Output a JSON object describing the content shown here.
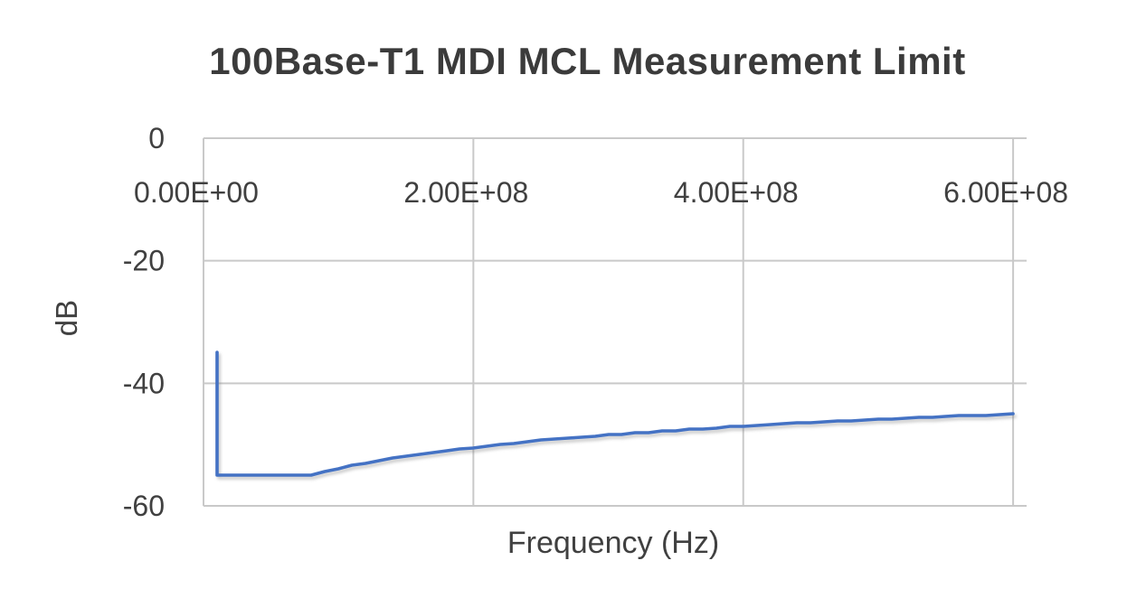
{
  "chart_data": {
    "type": "line",
    "title": "100Base-T1 MDI MCL Measurement Limit",
    "xlabel": "Frequency (Hz)",
    "ylabel": "dB",
    "xlim": [
      0,
      610000000
    ],
    "ylim": [
      -60,
      0
    ],
    "grid": true,
    "legend": "none",
    "x_ticks": [
      {
        "value": 0,
        "label": "0.00E+00"
      },
      {
        "value": 200000000,
        "label": "2.00E+08"
      },
      {
        "value": 400000000,
        "label": "4.00E+08"
      },
      {
        "value": 600000000,
        "label": "6.00E+08"
      }
    ],
    "y_ticks": [
      {
        "value": 0,
        "label": "0"
      },
      {
        "value": -20,
        "label": "-20"
      },
      {
        "value": -40,
        "label": "-40"
      },
      {
        "value": -60,
        "label": "-60"
      }
    ],
    "series": [
      {
        "color": "#4472C4",
        "points": [
          [
            10000000.0,
            -35
          ],
          [
            10000000.0,
            -55
          ],
          [
            20000000.0,
            -55
          ],
          [
            30000000.0,
            -55
          ],
          [
            40000000.0,
            -55
          ],
          [
            50000000.0,
            -55
          ],
          [
            60000000.0,
            -55
          ],
          [
            70000000.0,
            -55
          ],
          [
            80000000.0,
            -55
          ],
          [
            90000000.0,
            -54.4
          ],
          [
            100000000.0,
            -53.9
          ],
          [
            110000000.0,
            -53.4
          ],
          [
            120000000.0,
            -53.0
          ],
          [
            130000000.0,
            -52.6
          ],
          [
            140000000.0,
            -52.2
          ],
          [
            150000000.0,
            -51.9
          ],
          [
            160000000.0,
            -51.6
          ],
          [
            170000000.0,
            -51.3
          ],
          [
            180000000.0,
            -51.0
          ],
          [
            190000000.0,
            -50.7
          ],
          [
            200000000.0,
            -50.5
          ],
          [
            210000000.0,
            -50.2
          ],
          [
            220000000.0,
            -50.0
          ],
          [
            230000000.0,
            -49.8
          ],
          [
            240000000.0,
            -49.5
          ],
          [
            250000000.0,
            -49.3
          ],
          [
            260000000.0,
            -49.1
          ],
          [
            270000000.0,
            -49.0
          ],
          [
            280000000.0,
            -48.8
          ],
          [
            290000000.0,
            -48.6
          ],
          [
            300000000.0,
            -48.4
          ],
          [
            310000000.0,
            -48.3
          ],
          [
            320000000.0,
            -48.1
          ],
          [
            330000000.0,
            -48.0
          ],
          [
            340000000.0,
            -47.8
          ],
          [
            350000000.0,
            -47.7
          ],
          [
            360000000.0,
            -47.5
          ],
          [
            370000000.0,
            -47.4
          ],
          [
            380000000.0,
            -47.3
          ],
          [
            390000000.0,
            -47.1
          ],
          [
            400000000.0,
            -47.0
          ],
          [
            410000000.0,
            -46.9
          ],
          [
            420000000.0,
            -46.8
          ],
          [
            430000000.0,
            -46.6
          ],
          [
            440000000.0,
            -46.5
          ],
          [
            450000000.0,
            -46.4
          ],
          [
            460000000.0,
            -46.3
          ],
          [
            470000000.0,
            -46.2
          ],
          [
            480000000.0,
            -46.1
          ],
          [
            490000000.0,
            -46.0
          ],
          [
            500000000.0,
            -45.9
          ],
          [
            510000000.0,
            -45.8
          ],
          [
            520000000.0,
            -45.7
          ],
          [
            530000000.0,
            -45.6
          ],
          [
            540000000.0,
            -45.5
          ],
          [
            550000000.0,
            -45.4
          ],
          [
            560000000.0,
            -45.3
          ],
          [
            570000000.0,
            -45.3
          ],
          [
            580000000.0,
            -45.2
          ],
          [
            590000000.0,
            -45.1
          ],
          [
            600000000.0,
            -45.0
          ]
        ]
      }
    ]
  }
}
